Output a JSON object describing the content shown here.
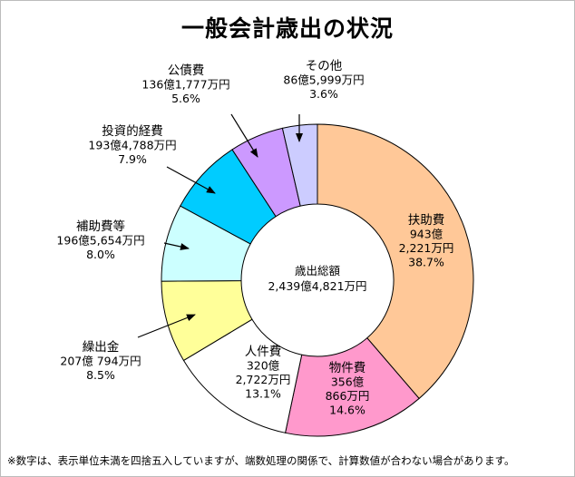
{
  "chart_data": {
    "type": "pie",
    "title": "一般会計歳出の状況",
    "center_label": {
      "name": "歳出総額",
      "amount": "2,439億4,821万円"
    },
    "slices": [
      {
        "name": "扶助費",
        "amount_lines": [
          "943億",
          "2,221万円"
        ],
        "percent_text": "38.7%",
        "value": 38.7,
        "color": "#ffc898"
      },
      {
        "name": "物件費",
        "amount_lines": [
          "356億",
          "866万円"
        ],
        "percent_text": "14.6%",
        "value": 14.6,
        "color": "#ff99cc"
      },
      {
        "name": "人件費",
        "amount_lines": [
          "320億",
          "2,722万円"
        ],
        "percent_text": "13.1%",
        "value": 13.1,
        "color": "#ffffff"
      },
      {
        "name": "繰出金",
        "amount_lines": [
          "207億  794万円"
        ],
        "percent_text": "8.5%",
        "value": 8.5,
        "color": "#ffff99"
      },
      {
        "name": "補助費等",
        "amount_lines": [
          "196億5,654万円"
        ],
        "percent_text": "8.0%",
        "value": 8.0,
        "color": "#ccffff"
      },
      {
        "name": "投資的経費",
        "amount_lines": [
          "193億4,788万円"
        ],
        "percent_text": "7.9%",
        "value": 7.9,
        "color": "#00ccff"
      },
      {
        "name": "公債費",
        "amount_lines": [
          "136億1,777万円"
        ],
        "percent_text": "5.6%",
        "value": 5.6,
        "color": "#cc99ff"
      },
      {
        "name": "その他",
        "amount_lines": [
          "86億5,999万円"
        ],
        "percent_text": "3.6%",
        "value": 3.6,
        "color": "#ccccff"
      }
    ]
  },
  "footnote": "※数字は、表示単位未満を四捨五入していますが、端数処理の関係で、計算数値が合わない場合があります。"
}
